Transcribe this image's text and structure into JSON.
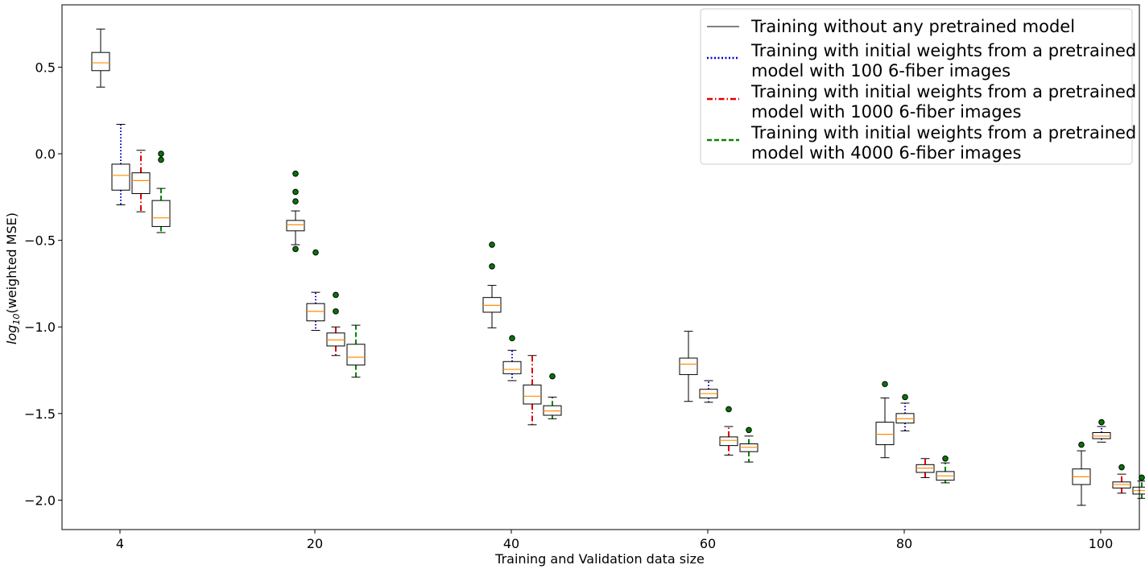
{
  "chart_data": {
    "type": "box",
    "xlabel": "Training and Validation data size",
    "ylabel": {
      "prefix": "log",
      "sub": "10",
      "suffix": "(weighted MSE)"
    },
    "ylim": [
      -2.17,
      0.86
    ],
    "yticks": [
      {
        "value": 0.5,
        "label": "0.5"
      },
      {
        "value": 0.0,
        "label": "0.0"
      },
      {
        "value": -0.5,
        "label": "−0.5"
      },
      {
        "value": -1.0,
        "label": "−1.0"
      },
      {
        "value": -1.5,
        "label": "−1.5"
      },
      {
        "value": -2.0,
        "label": "−2.0"
      }
    ],
    "categories": [
      "4",
      "20",
      "40",
      "60",
      "80",
      "100"
    ],
    "legend_position": "top-right",
    "series": [
      {
        "name": "Training without any pretrained model",
        "color": "#000000",
        "dash": "solid",
        "boxes": [
          {
            "whislo": 0.385,
            "q1": 0.48,
            "med": 0.525,
            "q3": 0.585,
            "whishi": 0.72,
            "fliers": []
          },
          {
            "whislo": -0.525,
            "q1": -0.445,
            "med": -0.41,
            "q3": -0.385,
            "whishi": -0.33,
            "fliers": [
              -0.115,
              -0.22,
              -0.275,
              -0.55
            ]
          },
          {
            "whislo": -1.005,
            "q1": -0.915,
            "med": -0.875,
            "q3": -0.83,
            "whishi": -0.76,
            "fliers": [
              -0.525,
              -0.65
            ]
          },
          {
            "whislo": -1.43,
            "q1": -1.275,
            "med": -1.215,
            "q3": -1.18,
            "whishi": -1.025,
            "fliers": []
          },
          {
            "whislo": -1.755,
            "q1": -1.68,
            "med": -1.62,
            "q3": -1.55,
            "whishi": -1.41,
            "fliers": [
              -1.33
            ]
          },
          {
            "whislo": -2.03,
            "q1": -1.91,
            "med": -1.865,
            "q3": -1.82,
            "whishi": -1.715,
            "fliers": [
              -1.68
            ]
          }
        ]
      },
      {
        "name": "Training with initial weights from a pretrained model with 100 6-fiber images",
        "color": "#0000cc",
        "dash": "dotted",
        "boxes": [
          {
            "whislo": -0.295,
            "q1": -0.21,
            "med": -0.125,
            "q3": -0.06,
            "whishi": 0.17,
            "fliers": []
          },
          {
            "whislo": -1.02,
            "q1": -0.965,
            "med": -0.91,
            "q3": -0.865,
            "whishi": -0.8,
            "fliers": [
              -0.57
            ]
          },
          {
            "whislo": -1.31,
            "q1": -1.27,
            "med": -1.245,
            "q3": -1.2,
            "whishi": -1.135,
            "fliers": [
              -1.065
            ]
          },
          {
            "whislo": -1.435,
            "q1": -1.41,
            "med": -1.385,
            "q3": -1.36,
            "whishi": -1.31,
            "fliers": []
          },
          {
            "whislo": -1.6,
            "q1": -1.555,
            "med": -1.53,
            "q3": -1.5,
            "whishi": -1.44,
            "fliers": [
              -1.405
            ]
          },
          {
            "whislo": -1.665,
            "q1": -1.645,
            "med": -1.63,
            "q3": -1.61,
            "whishi": -1.575,
            "fliers": [
              -1.55
            ]
          }
        ]
      },
      {
        "name": "Training with initial weights from a pretrained model with 1000 6-fiber images",
        "color": "#dd0000",
        "dash": "dashdot",
        "boxes": [
          {
            "whislo": -0.335,
            "q1": -0.23,
            "med": -0.155,
            "q3": -0.11,
            "whishi": 0.02,
            "fliers": []
          },
          {
            "whislo": -1.165,
            "q1": -1.11,
            "med": -1.075,
            "q3": -1.035,
            "whishi": -1.0,
            "fliers": [
              -0.815,
              -0.91
            ]
          },
          {
            "whislo": -1.565,
            "q1": -1.445,
            "med": -1.4,
            "q3": -1.335,
            "whishi": -1.165,
            "fliers": []
          },
          {
            "whislo": -1.74,
            "q1": -1.685,
            "med": -1.655,
            "q3": -1.635,
            "whishi": -1.575,
            "fliers": [
              -1.475
            ]
          },
          {
            "whislo": -1.87,
            "q1": -1.84,
            "med": -1.815,
            "q3": -1.795,
            "whishi": -1.76,
            "fliers": []
          },
          {
            "whislo": -1.96,
            "q1": -1.93,
            "med": -1.91,
            "q3": -1.895,
            "whishi": -1.85,
            "fliers": [
              -1.81
            ]
          }
        ]
      },
      {
        "name": "Training with initial weights from a pretrained model with 4000 6-fiber images",
        "color": "#008800",
        "dash": "dashed",
        "boxes": [
          {
            "whislo": -0.455,
            "q1": -0.42,
            "med": -0.37,
            "q3": -0.27,
            "whishi": -0.2,
            "fliers": [
              0.0,
              -0.035
            ]
          },
          {
            "whislo": -1.29,
            "q1": -1.22,
            "med": -1.175,
            "q3": -1.1,
            "whishi": -0.99,
            "fliers": []
          },
          {
            "whislo": -1.53,
            "q1": -1.51,
            "med": -1.485,
            "q3": -1.455,
            "whishi": -1.405,
            "fliers": [
              -1.285
            ]
          },
          {
            "whislo": -1.78,
            "q1": -1.72,
            "med": -1.695,
            "q3": -1.675,
            "whishi": -1.63,
            "fliers": [
              -1.595
            ]
          },
          {
            "whislo": -1.9,
            "q1": -1.885,
            "med": -1.86,
            "q3": -1.835,
            "whishi": -1.785,
            "fliers": [
              -1.76
            ]
          },
          {
            "whislo": -1.99,
            "q1": -1.965,
            "med": -1.945,
            "q3": -1.925,
            "whishi": -1.89,
            "fliers": [
              -1.87
            ]
          }
        ]
      }
    ],
    "colors": {
      "median": "#ff8c00",
      "flier_fill": "#007700",
      "box_edge": "#000000"
    }
  }
}
